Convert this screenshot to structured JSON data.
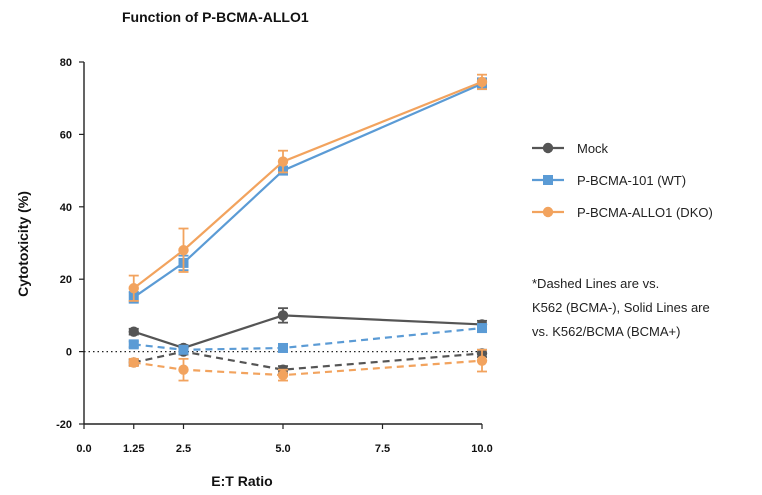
{
  "chart_data": {
    "type": "line",
    "title": "Function of P-BCMA-ALLO1",
    "xlabel": "E:T Ratio",
    "ylabel": "Cytotoxicity (%)",
    "xlim": [
      0,
      10
    ],
    "ylim": [
      -20,
      80
    ],
    "xticks": [
      0,
      1.25,
      2.5,
      5,
      7.5,
      10
    ],
    "xtick_labels": [
      "0.0",
      "1.25",
      "2.5",
      "5.0",
      "7.5",
      "10.0"
    ],
    "yticks": [
      -20,
      0,
      20,
      40,
      60,
      80
    ],
    "ytick_labels": [
      "-20",
      "0",
      "20",
      "40",
      "60",
      "80"
    ],
    "reference_line": {
      "y": 0,
      "style": "dotted"
    },
    "legend_position": "right",
    "series": [
      {
        "name": "Mock",
        "color": "#555555",
        "marker": "circle",
        "style": "solid",
        "x": [
          1.25,
          2.5,
          5,
          10
        ],
        "y": [
          5.5,
          1,
          10,
          7.5
        ],
        "err": [
          0.8,
          0.8,
          2,
          1
        ]
      },
      {
        "name": "Mock",
        "color": "#555555",
        "marker": "circle",
        "style": "dashed",
        "x": [
          1.25,
          2.5,
          5,
          10
        ],
        "y": [
          -3,
          0,
          -5,
          -0.5
        ],
        "err": [
          0.8,
          0.8,
          1,
          1
        ]
      },
      {
        "name": "P-BCMA-101 (WT)",
        "color": "#5b9bd5",
        "marker": "square",
        "style": "solid",
        "x": [
          1.25,
          2.5,
          5,
          10
        ],
        "y": [
          15,
          24.5,
          50,
          74
        ],
        "err": [
          1.5,
          2,
          1,
          1.5
        ]
      },
      {
        "name": "P-BCMA-101 (WT)",
        "color": "#5b9bd5",
        "marker": "square",
        "style": "dashed",
        "x": [
          1.25,
          2.5,
          5,
          10
        ],
        "y": [
          2,
          0.5,
          1,
          6.5
        ],
        "err": [
          0.8,
          0.8,
          0.8,
          1
        ]
      },
      {
        "name": "P-BCMA-ALLO1 (DKO)",
        "color": "#f2a35e",
        "marker": "circle",
        "style": "solid",
        "x": [
          1.25,
          2.5,
          5,
          10
        ],
        "y": [
          17.5,
          28,
          52.5,
          74.5
        ],
        "err": [
          3.5,
          6,
          3,
          2
        ]
      },
      {
        "name": "P-BCMA-ALLO1 (DKO)",
        "color": "#f2a35e",
        "marker": "circle",
        "style": "dashed",
        "x": [
          1.25,
          2.5,
          5,
          10
        ],
        "y": [
          -3,
          -5,
          -6.5,
          -2.5
        ],
        "err": [
          1,
          3,
          1.5,
          3
        ]
      }
    ],
    "legend": [
      {
        "label": "Mock",
        "color": "#555555",
        "marker": "circle"
      },
      {
        "label": "P-BCMA-101 (WT)",
        "color": "#5b9bd5",
        "marker": "square"
      },
      {
        "label": "P-BCMA-ALLO1 (DKO)",
        "color": "#f2a35e",
        "marker": "circle"
      }
    ],
    "annotation": {
      "lines": [
        "*Dashed Lines are vs.",
        "K562 (BCMA-), Solid Lines are",
        "vs. K562/BCMA (BCMA+)"
      ]
    }
  }
}
